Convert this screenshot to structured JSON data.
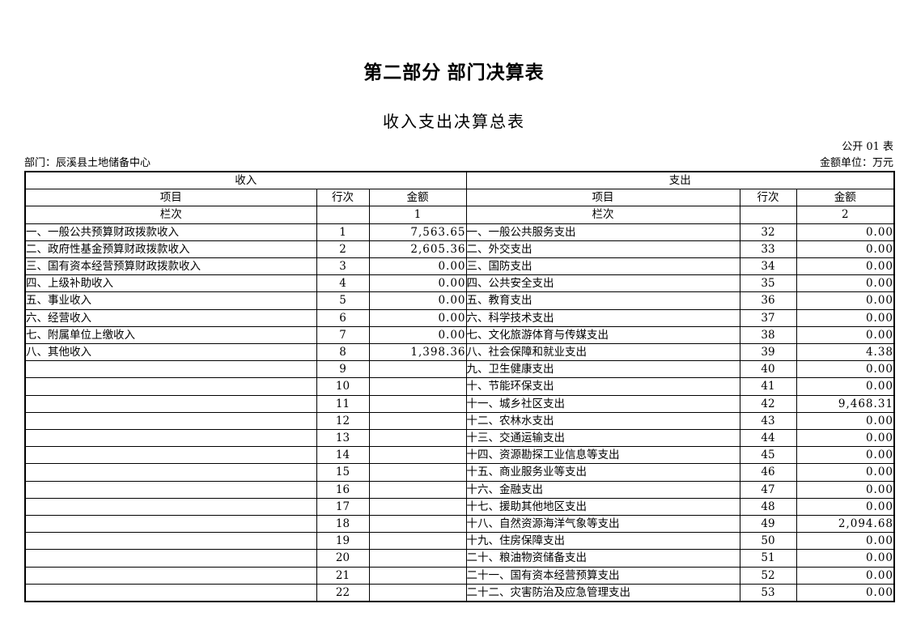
{
  "page": {
    "part_title": "第二部分 部门决算表",
    "table_title": "收入支出决算总表",
    "table_code": "公开 01 表",
    "department_label": "部门：辰溪县土地储备中心",
    "unit_label": "金额单位：万元"
  },
  "table": {
    "income_header": "收入",
    "expense_header": "支出",
    "col_item": "项目",
    "col_line": "行次",
    "col_amount": "金额",
    "col_index_label": "栏次",
    "income_col_index": "1",
    "expense_col_index": "2",
    "rows": [
      [
        "一、一般公共预算财政拨款收入",
        "1",
        "7,563.65",
        "一、一般公共服务支出",
        "32",
        "0.00"
      ],
      [
        "二、政府性基金预算财政拨款收入",
        "2",
        "2,605.36",
        "二、外交支出",
        "33",
        "0.00"
      ],
      [
        "三、国有资本经营预算财政拨款收入",
        "3",
        "0.00",
        "三、国防支出",
        "34",
        "0.00"
      ],
      [
        "四、上级补助收入",
        "4",
        "0.00",
        "四、公共安全支出",
        "35",
        "0.00"
      ],
      [
        "五、事业收入",
        "5",
        "0.00",
        "五、教育支出",
        "36",
        "0.00"
      ],
      [
        "六、经营收入",
        "6",
        "0.00",
        "六、科学技术支出",
        "37",
        "0.00"
      ],
      [
        "七、附属单位上缴收入",
        "7",
        "0.00",
        "七、文化旅游体育与传媒支出",
        "38",
        "0.00"
      ],
      [
        "八、其他收入",
        "8",
        "1,398.36",
        "八、社会保障和就业支出",
        "39",
        "4.38"
      ],
      [
        "",
        "9",
        "",
        "九、卫生健康支出",
        "40",
        "0.00"
      ],
      [
        "",
        "10",
        "",
        "十、节能环保支出",
        "41",
        "0.00"
      ],
      [
        "",
        "11",
        "",
        "十一、城乡社区支出",
        "42",
        "9,468.31"
      ],
      [
        "",
        "12",
        "",
        "十二、农林水支出",
        "43",
        "0.00"
      ],
      [
        "",
        "13",
        "",
        "十三、交通运输支出",
        "44",
        "0.00"
      ],
      [
        "",
        "14",
        "",
        "十四、资源勘探工业信息等支出",
        "45",
        "0.00"
      ],
      [
        "",
        "15",
        "",
        "十五、商业服务业等支出",
        "46",
        "0.00"
      ],
      [
        "",
        "16",
        "",
        "十六、金融支出",
        "47",
        "0.00"
      ],
      [
        "",
        "17",
        "",
        "十七、援助其他地区支出",
        "48",
        "0.00"
      ],
      [
        "",
        "18",
        "",
        "十八、自然资源海洋气象等支出",
        "49",
        "2,094.68"
      ],
      [
        "",
        "19",
        "",
        "十九、住房保障支出",
        "50",
        "0.00"
      ],
      [
        "",
        "20",
        "",
        "二十、粮油物资储备支出",
        "51",
        "0.00"
      ],
      [
        "",
        "21",
        "",
        "二十一、国有资本经营预算支出",
        "52",
        "0.00"
      ],
      [
        "",
        "22",
        "",
        "二十二、灾害防治及应急管理支出",
        "53",
        "0.00"
      ]
    ]
  }
}
